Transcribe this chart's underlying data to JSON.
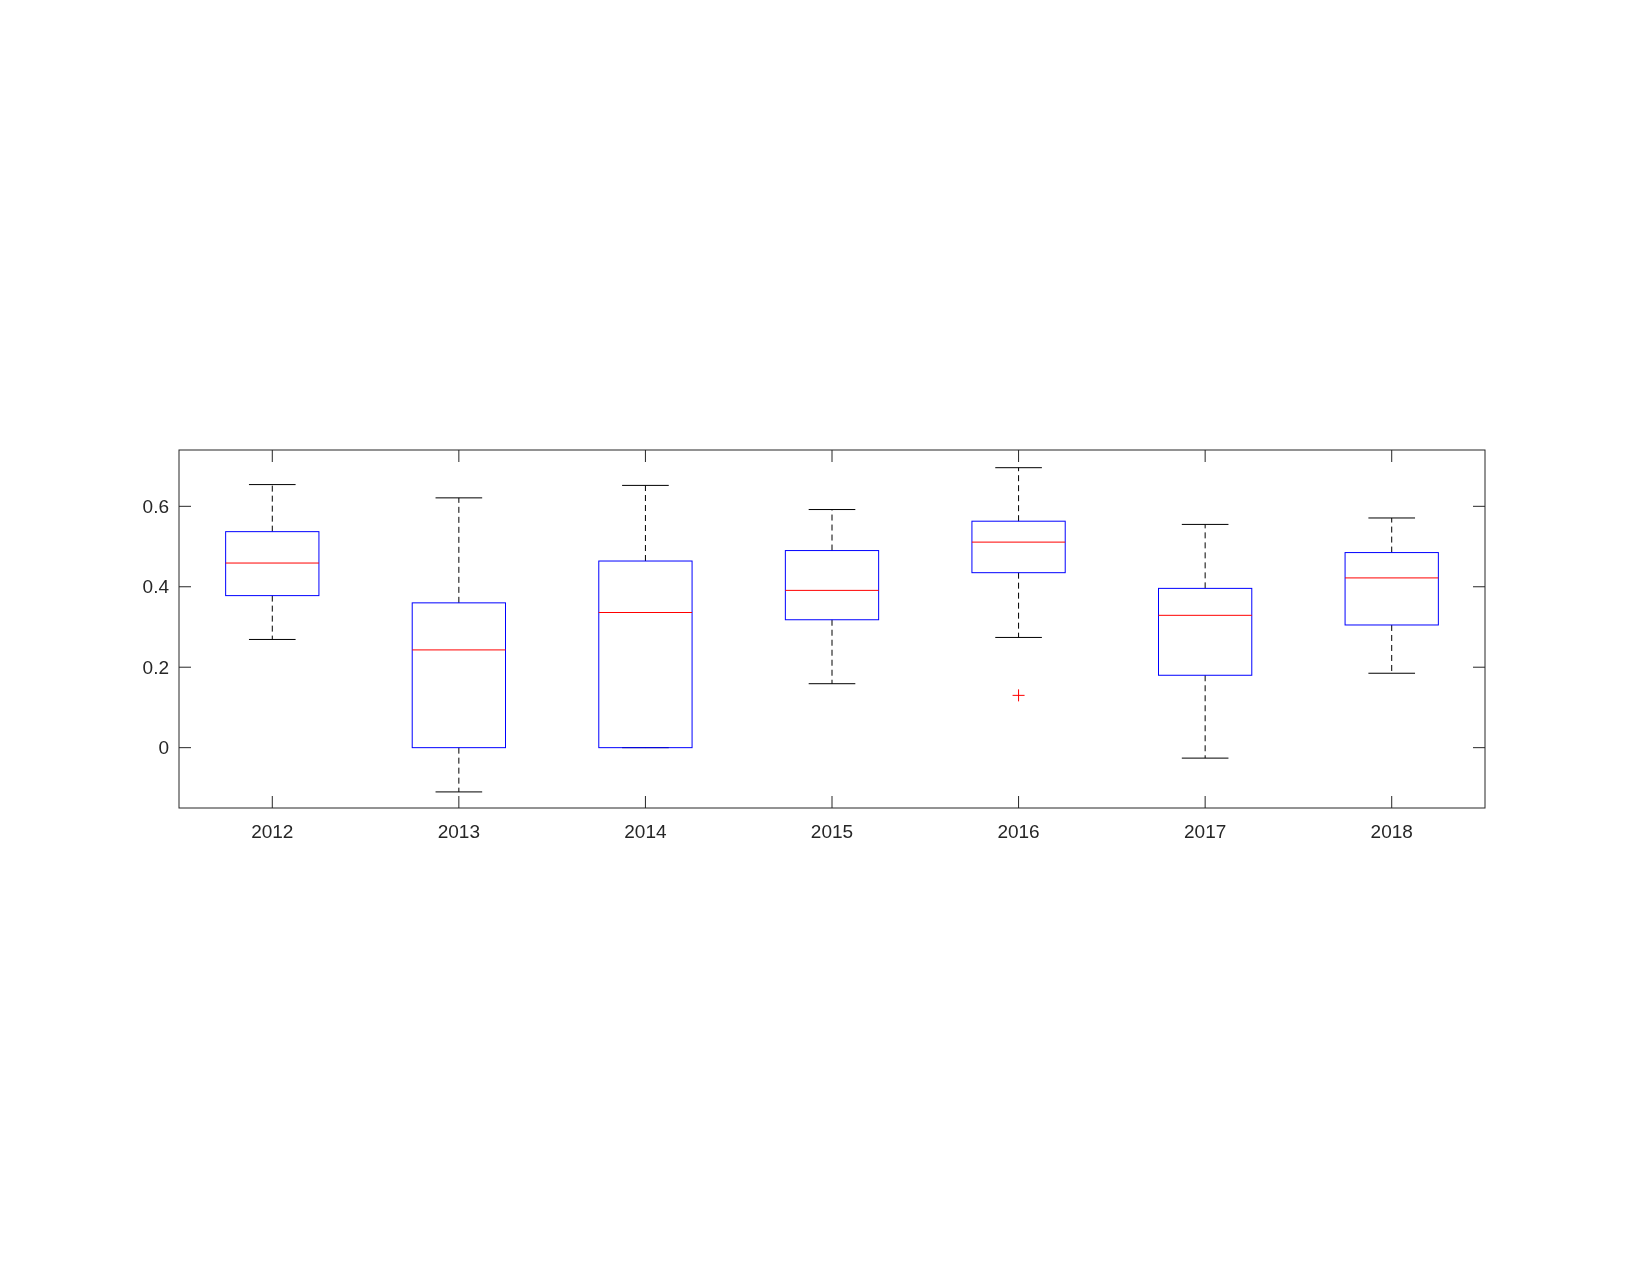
{
  "chart_data": {
    "type": "box",
    "categories": [
      "2012",
      "2013",
      "2014",
      "2015",
      "2016",
      "2017",
      "2018"
    ],
    "color": "#0000ff",
    "boxes": [
      {
        "low": 0.269,
        "q1": 0.378,
        "median": 0.459,
        "q3": 0.537,
        "high": 0.654
      },
      {
        "low": -0.11,
        "q1": 0,
        "median": 0.243,
        "q3": 0.36,
        "high": 0.621
      },
      {
        "low": 0,
        "q1": 0,
        "median": 0.336,
        "q3": 0.464,
        "high": 0.652
      },
      {
        "low": 0.159,
        "q1": 0.318,
        "median": 0.391,
        "q3": 0.49,
        "high": 0.592
      },
      {
        "low": 0.274,
        "q1": 0.435,
        "median": 0.511,
        "q3": 0.563,
        "high": 0.696,
        "outliers": [
          0.13
        ]
      },
      {
        "low": -0.026,
        "q1": 0.18,
        "median": 0.329,
        "q3": 0.396,
        "high": 0.555
      },
      {
        "low": 0.185,
        "q1": 0.305,
        "median": 0.422,
        "q3": 0.485,
        "high": 0.571
      }
    ],
    "ylim": [
      -0.15,
      0.74
    ],
    "yticks": [
      0,
      0.2,
      0.4,
      0.6
    ],
    "grid": false
  }
}
